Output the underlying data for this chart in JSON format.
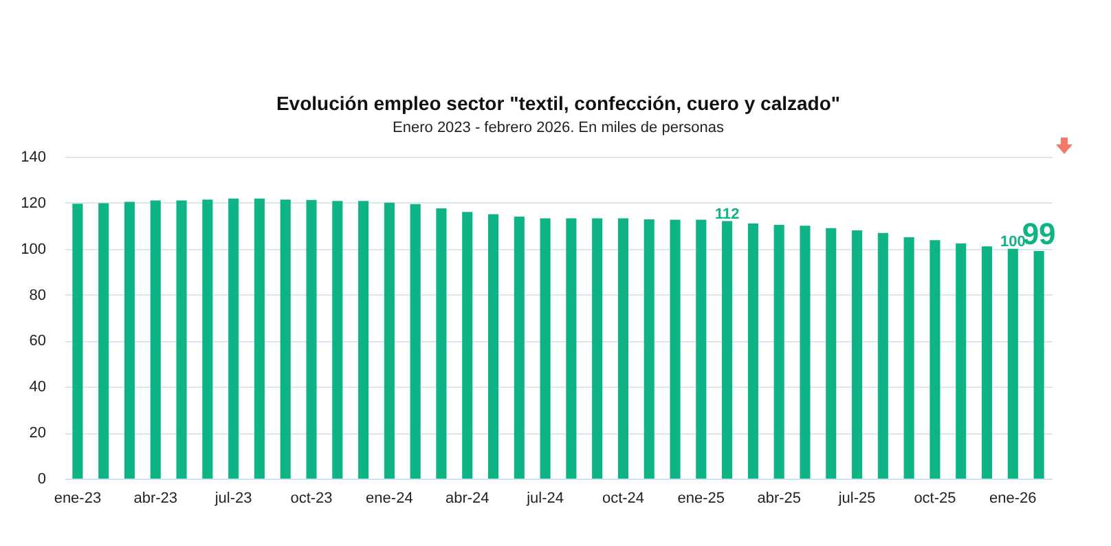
{
  "chart_data": {
    "type": "bar",
    "title": "Evolución empleo sector \"textil, confección, cuero y calzado\"",
    "subtitle": "Enero 2023 - febrero 2026. En miles de personas",
    "categories": [
      "ene-23",
      null,
      null,
      "abr-23",
      null,
      null,
      "jul-23",
      null,
      null,
      "oct-23",
      null,
      null,
      "ene-24",
      null,
      null,
      "abr-24",
      null,
      null,
      "jul-24",
      null,
      null,
      "oct-24",
      null,
      null,
      "ene-25",
      null,
      null,
      "abr-25",
      null,
      null,
      "jul-25",
      null,
      null,
      "oct-25",
      null,
      null,
      "ene-26",
      null
    ],
    "values": [
      119.6,
      119.8,
      120.4,
      121,
      121,
      121.4,
      121.8,
      121.8,
      121.4,
      121.2,
      120.8,
      120.8,
      120,
      119.4,
      117.6,
      116,
      115,
      114,
      113.2,
      113.2,
      113.2,
      113.2,
      112.8,
      112.6,
      112.6,
      112,
      111,
      110.4,
      110,
      109,
      108,
      106.9,
      105,
      103.7,
      102.3,
      101,
      100,
      99
    ],
    "value_labels": [
      null,
      null,
      null,
      null,
      null,
      null,
      null,
      null,
      null,
      null,
      null,
      null,
      null,
      null,
      null,
      null,
      null,
      null,
      null,
      null,
      null,
      null,
      null,
      null,
      null,
      "112",
      null,
      null,
      null,
      null,
      null,
      null,
      null,
      null,
      null,
      null,
      "100",
      "99"
    ],
    "color": "#0fb486",
    "ylim": [
      0,
      140
    ],
    "yticks": [
      0,
      20,
      40,
      60,
      80,
      100,
      120,
      140
    ],
    "grid": "y"
  }
}
